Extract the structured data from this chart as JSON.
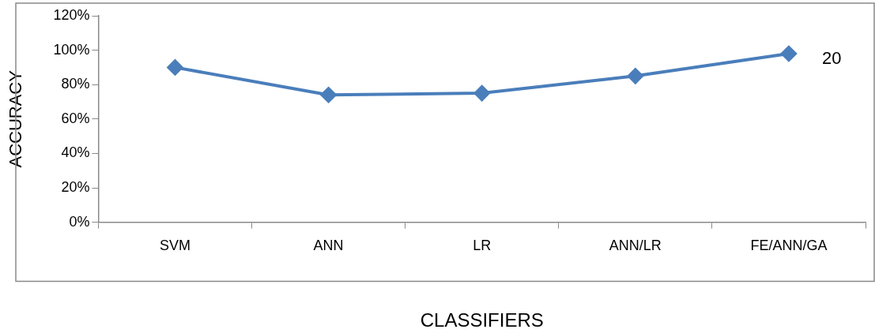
{
  "chart_data": {
    "type": "line",
    "xlabel": "CLASSIFIERS",
    "ylabel": "ACCURACY",
    "categories": [
      "SVM",
      "ANN",
      "LR",
      "ANN/LR",
      "FE/ANN/GA"
    ],
    "series": [
      {
        "color": "#4a7ebb",
        "values": [
          90,
          74,
          75,
          85,
          98
        ]
      }
    ],
    "ylim": [
      0,
      120
    ],
    "yticks": [
      {
        "value": 0,
        "label": "0%"
      },
      {
        "value": 20,
        "label": "20%"
      },
      {
        "value": 40,
        "label": "40%"
      },
      {
        "value": 60,
        "label": "60%"
      },
      {
        "value": 80,
        "label": "80%"
      },
      {
        "value": 100,
        "label": "100%"
      },
      {
        "value": 120,
        "label": "120%"
      }
    ],
    "grid": false,
    "legend": false,
    "marker": "diamond",
    "line_style": "solid",
    "annotations": [
      "20"
    ]
  }
}
